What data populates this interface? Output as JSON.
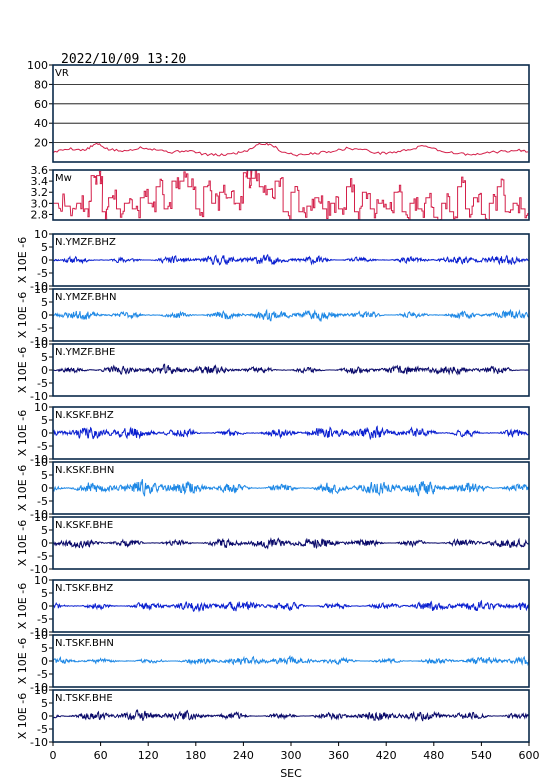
{
  "header": {
    "timestamp": "2022/10/09 13:20"
  },
  "colors": {
    "vr_line": "#d4204a",
    "mw_line": "#d4204a",
    "bhz": "#0a1fd0",
    "bhn": "#1e88e5",
    "bhe": "#0a0a6a",
    "axis": "#000000",
    "grid": "#000000",
    "frame": "#0a2a4a"
  },
  "chart_data": [
    {
      "type": "line",
      "label": "VR",
      "ylim": [
        0,
        100
      ],
      "yticks": [
        20,
        40,
        60,
        80,
        100
      ],
      "grid": true,
      "xlim": [
        0,
        600
      ],
      "series": [
        {
          "x": [
            0,
            20,
            40,
            55,
            70,
            90,
            110,
            130,
            150,
            170,
            190,
            210,
            230,
            245,
            260,
            275,
            290,
            310,
            330,
            350,
            370,
            390,
            410,
            430,
            450,
            470,
            490,
            510,
            530,
            550,
            570,
            590,
            600
          ],
          "y": [
            10,
            14,
            12,
            19,
            13,
            11,
            15,
            13,
            10,
            12,
            8,
            7,
            9,
            12,
            19,
            18,
            10,
            7,
            9,
            11,
            14,
            13,
            9,
            10,
            13,
            17,
            11,
            9,
            7,
            10,
            11,
            12,
            11
          ]
        }
      ]
    },
    {
      "type": "line",
      "label": "Mw",
      "ylim": [
        2.7,
        3.6
      ],
      "yticks": [
        2.8,
        3.0,
        3.2,
        3.4,
        3.6
      ],
      "grid": false,
      "xlim": [
        0,
        600
      ],
      "series": [
        {
          "x": [
            0,
            15,
            30,
            40,
            48,
            55,
            62,
            70,
            80,
            90,
            100,
            110,
            120,
            130,
            140,
            150,
            160,
            170,
            180,
            190,
            200,
            210,
            220,
            230,
            240,
            245,
            250,
            260,
            270,
            280,
            290,
            300,
            310,
            320,
            330,
            340,
            350,
            360,
            370,
            380,
            390,
            400,
            410,
            420,
            430,
            440,
            450,
            460,
            470,
            480,
            490,
            500,
            510,
            520,
            530,
            540,
            550,
            560,
            570,
            580,
            590,
            600
          ],
          "y": [
            3.0,
            2.95,
            3.0,
            2.9,
            3.5,
            3.5,
            2.85,
            3.1,
            2.9,
            3.0,
            2.9,
            3.1,
            3.0,
            3.3,
            2.9,
            3.4,
            3.4,
            3.3,
            2.9,
            3.3,
            3.0,
            3.2,
            3.1,
            3.0,
            3.55,
            3.45,
            3.45,
            3.3,
            3.25,
            3.4,
            2.85,
            3.2,
            2.85,
            2.95,
            3.1,
            2.9,
            3.0,
            2.9,
            3.3,
            2.85,
            3.2,
            2.9,
            3.0,
            2.9,
            3.2,
            2.85,
            3.0,
            2.9,
            3.1,
            2.75,
            3.0,
            2.85,
            3.3,
            2.9,
            3.1,
            2.8,
            3.0,
            3.3,
            2.85,
            3.0,
            2.9,
            3.1
          ]
        }
      ]
    },
    {
      "type": "line",
      "label": "N.YMZF.BHZ",
      "ylim": [
        -10,
        10
      ],
      "yticks": [
        -10,
        -5,
        0,
        5,
        10
      ],
      "xlim": [
        0,
        600
      ],
      "color_key": "bhz",
      "amplitude": 1.3,
      "seed": 11
    },
    {
      "type": "line",
      "label": "N.YMZF.BHN",
      "ylim": [
        -10,
        10
      ],
      "yticks": [
        -10,
        -5,
        0,
        5,
        10
      ],
      "xlim": [
        0,
        600
      ],
      "color_key": "bhn",
      "amplitude": 1.4,
      "seed": 23
    },
    {
      "type": "line",
      "label": "N.YMZF.BHE",
      "ylim": [
        -10,
        10
      ],
      "yticks": [
        -10,
        -5,
        0,
        5,
        10
      ],
      "xlim": [
        0,
        600
      ],
      "color_key": "bhe",
      "amplitude": 1.3,
      "seed": 37
    },
    {
      "type": "line",
      "label": "N.KSKF.BHZ",
      "ylim": [
        -10,
        10
      ],
      "yticks": [
        -10,
        -5,
        0,
        5,
        10
      ],
      "xlim": [
        0,
        600
      ],
      "color_key": "bhz",
      "amplitude": 1.6,
      "seed": 41
    },
    {
      "type": "line",
      "label": "N.KSKF.BHN",
      "ylim": [
        -10,
        10
      ],
      "yticks": [
        -10,
        -5,
        0,
        5,
        10
      ],
      "xlim": [
        0,
        600
      ],
      "color_key": "bhn",
      "amplitude": 2.0,
      "seed": 53
    },
    {
      "type": "line",
      "label": "N.KSKF.BHE",
      "ylim": [
        -10,
        10
      ],
      "yticks": [
        -10,
        -5,
        0,
        5,
        10
      ],
      "xlim": [
        0,
        600
      ],
      "color_key": "bhe",
      "amplitude": 1.4,
      "seed": 67
    },
    {
      "type": "line",
      "label": "N.TSKF.BHZ",
      "ylim": [
        -10,
        10
      ],
      "yticks": [
        -10,
        -5,
        0,
        5,
        10
      ],
      "xlim": [
        0,
        600
      ],
      "color_key": "bhz",
      "amplitude": 1.4,
      "seed": 71
    },
    {
      "type": "line",
      "label": "N.TSKF.BHN",
      "ylim": [
        -10,
        10
      ],
      "yticks": [
        -10,
        -5,
        0,
        5,
        10
      ],
      "xlim": [
        0,
        600
      ],
      "color_key": "bhn",
      "amplitude": 1.1,
      "seed": 83
    },
    {
      "type": "line",
      "label": "N.TSKF.BHE",
      "ylim": [
        -10,
        10
      ],
      "yticks": [
        -10,
        -5,
        0,
        5,
        10
      ],
      "xlim": [
        0,
        600
      ],
      "color_key": "bhe",
      "amplitude": 1.3,
      "seed": 97
    }
  ],
  "y_unit_label": "X 10E -6",
  "x_axis": {
    "label": "SEC",
    "ticks": [
      0,
      60,
      120,
      180,
      240,
      300,
      360,
      420,
      480,
      540,
      600
    ]
  }
}
